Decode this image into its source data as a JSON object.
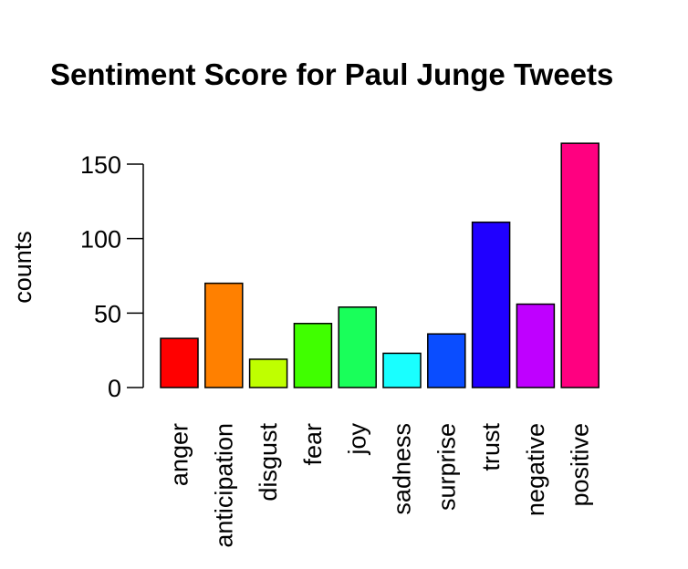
{
  "chart_data": {
    "type": "bar",
    "title": "Sentiment Score for Paul Junge Tweets",
    "xlabel": "",
    "ylabel": "counts",
    "ylim": [
      0,
      165
    ],
    "yticks": [
      0,
      50,
      100,
      150
    ],
    "grid": false,
    "categories": [
      "anger",
      "anticipation",
      "disgust",
      "fear",
      "joy",
      "sadness",
      "surprise",
      "trust",
      "negative",
      "positive"
    ],
    "values": [
      33,
      70,
      19,
      43,
      54,
      23,
      36,
      111,
      56,
      164
    ],
    "colors": [
      "#FF0000",
      "#FF8000",
      "#BFFF00",
      "#40FF00",
      "#19FF5A",
      "#19FFFF",
      "#0A4DFF",
      "#2000FF",
      "#BF00FF",
      "#FF0080"
    ]
  }
}
